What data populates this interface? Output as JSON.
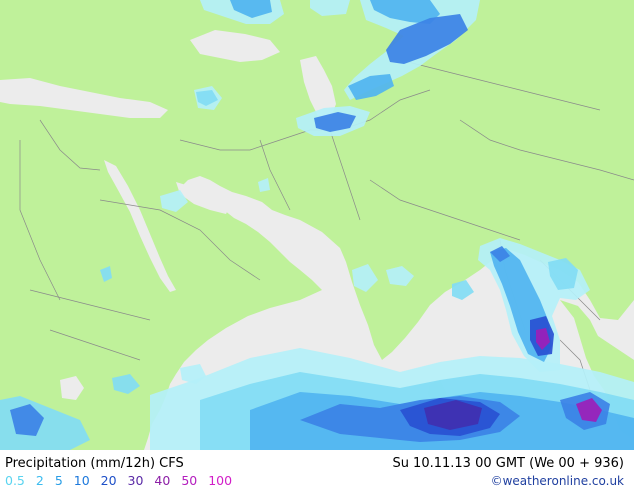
{
  "map": {
    "colors": {
      "land": "#bff19a",
      "sea": "#ececec",
      "border": "#8a8a8a"
    },
    "precip_colors": [
      "#b4f0f8",
      "#82dcf4",
      "#50b4f0",
      "#3c82e6",
      "#2850d2",
      "#4030b0",
      "#6a26a8",
      "#9c1eb8",
      "#c21ec8"
    ]
  },
  "footer": {
    "title": "Precipitation (mm/12h) CFS",
    "timestamp": "Su 10.11.13 00 GMT (We 00 + 936)",
    "legend": [
      {
        "label": "0.5",
        "color": "#5ad4f0"
      },
      {
        "label": "2",
        "color": "#3cbcf0"
      },
      {
        "label": "5",
        "color": "#2a9ee6"
      },
      {
        "label": "10",
        "color": "#1c78dc"
      },
      {
        "label": "20",
        "color": "#1e50c8"
      },
      {
        "label": "30",
        "color": "#5a2aa6"
      },
      {
        "label": "40",
        "color": "#8c1ea6"
      },
      {
        "label": "50",
        "color": "#b41ebe"
      },
      {
        "label": "100",
        "color": "#d21ec8"
      }
    ],
    "credit": "©weatheronline.co.uk"
  }
}
